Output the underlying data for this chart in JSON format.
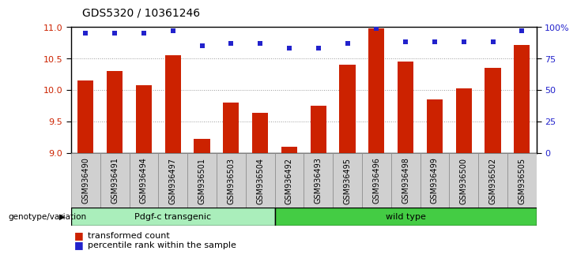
{
  "title": "GDS5320 / 10361246",
  "samples": [
    "GSM936490",
    "GSM936491",
    "GSM936494",
    "GSM936497",
    "GSM936501",
    "GSM936503",
    "GSM936504",
    "GSM936492",
    "GSM936493",
    "GSM936495",
    "GSM936496",
    "GSM936498",
    "GSM936499",
    "GSM936500",
    "GSM936502",
    "GSM936505"
  ],
  "bar_values": [
    10.15,
    10.3,
    10.07,
    10.55,
    9.22,
    9.8,
    9.64,
    9.1,
    9.75,
    10.4,
    10.98,
    10.45,
    9.85,
    10.03,
    10.35,
    10.72
  ],
  "percentile_values": [
    95,
    95,
    95,
    97,
    85,
    87,
    87,
    83,
    83,
    87,
    99,
    88,
    88,
    88,
    88,
    97
  ],
  "ylim_left": [
    9.0,
    11.0
  ],
  "ylim_right": [
    0,
    100
  ],
  "yticks_left": [
    9.0,
    9.5,
    10.0,
    10.5,
    11.0
  ],
  "yticks_right": [
    0,
    25,
    50,
    75,
    100
  ],
  "yticklabels_right": [
    "0",
    "25",
    "50",
    "75",
    "100%"
  ],
  "bar_color": "#cc2200",
  "dot_color": "#2222cc",
  "bar_width": 0.55,
  "group1_label": "Pdgf-c transgenic",
  "group2_label": "wild type",
  "group1_color": "#aaeebb",
  "group2_color": "#44cc44",
  "group1_count": 7,
  "genotype_label": "genotype/variation",
  "legend_bar_label": "transformed count",
  "legend_dot_label": "percentile rank within the sample",
  "left_tick_color": "#cc2200",
  "right_tick_color": "#2222cc",
  "grid_color": "#999999",
  "bg_color": "#ffffff",
  "xtick_bg_color": "#d0d0d0",
  "xtick_border_color": "#888888"
}
